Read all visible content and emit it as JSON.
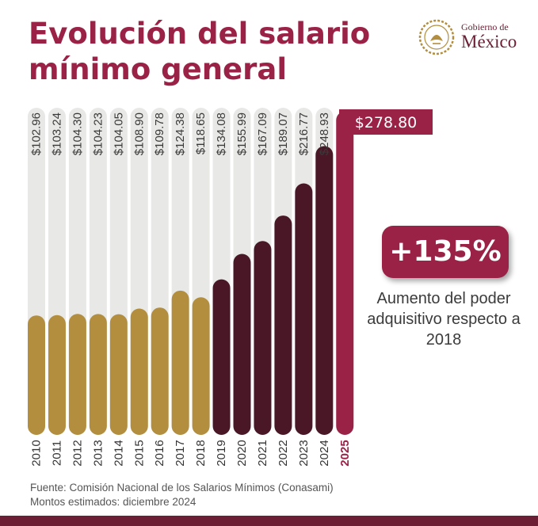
{
  "title": "Evolución del salario mínimo general",
  "logo": {
    "line1": "Gobierno de",
    "line2": "México"
  },
  "highlight": {
    "percent": "+135%",
    "caption": "Aumento del poder adquisitivo respecto a 2018"
  },
  "source": {
    "line1": "Fuente: Comisión Nacional de los Salarios Mínimos (Conasami)",
    "line2": "Montos estimados: diciembre 2024"
  },
  "colors": {
    "period_2010_2018": "#b38e3e",
    "period_2019_2024": "#4a1727",
    "year_2025": "#9b2247",
    "track": "#e8e8e6",
    "title": "#9b2247"
  },
  "chart_data": {
    "type": "bar",
    "categories": [
      "2010",
      "2011",
      "2012",
      "2013",
      "2014",
      "2015",
      "2016",
      "2017",
      "2018",
      "2019",
      "2020",
      "2021",
      "2022",
      "2023",
      "2024",
      "2025"
    ],
    "values": [
      102.96,
      103.24,
      104.3,
      104.23,
      104.05,
      108.9,
      109.78,
      124.38,
      118.65,
      134.08,
      155.99,
      167.09,
      189.07,
      216.77,
      248.93,
      278.8
    ],
    "value_labels": [
      "$102.96",
      "$103.24",
      "$104.30",
      "$104.23",
      "$104.05",
      "$108.90",
      "$109.78",
      "$124.38",
      "$118.65",
      "$134.08",
      "$155.99",
      "$167.09",
      "$189.07",
      "$216.77",
      "$248.93",
      "$278.80"
    ],
    "groups": [
      "period_2010_2018",
      "period_2010_2018",
      "period_2010_2018",
      "period_2010_2018",
      "period_2010_2018",
      "period_2010_2018",
      "period_2010_2018",
      "period_2010_2018",
      "period_2010_2018",
      "period_2019_2024",
      "period_2019_2024",
      "period_2019_2024",
      "period_2019_2024",
      "period_2019_2024",
      "period_2019_2024",
      "year_2025"
    ],
    "highlight_index": 15,
    "ylim": [
      0,
      282
    ],
    "grid": false,
    "legend": "none",
    "title": "Evolución del salario mínimo general",
    "xlabel": "",
    "ylabel": ""
  }
}
